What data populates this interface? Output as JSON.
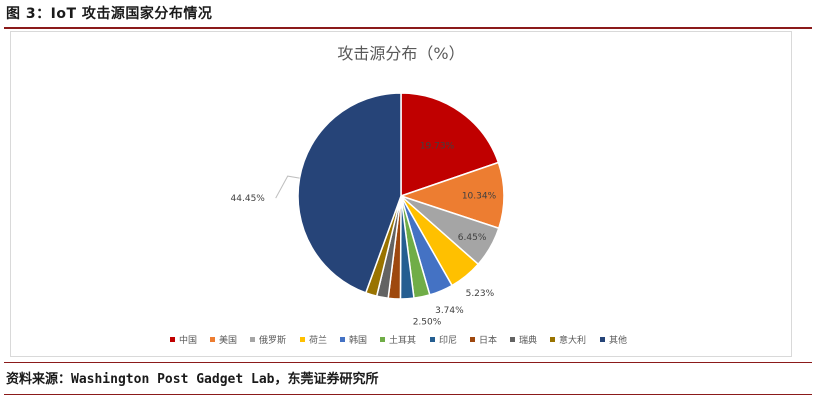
{
  "figure": {
    "title": "图 3：IoT 攻击源国家分布情况",
    "source": "资料来源：Washington Post Gadget Lab，东莞证券研究所"
  },
  "chart_data": {
    "type": "pie",
    "title": "攻击源分布（%）",
    "slices": [
      {
        "name": "中国",
        "value": 19.73,
        "label": "19.73%",
        "color": "#c00000"
      },
      {
        "name": "美国",
        "value": 10.34,
        "label": "10.34%",
        "color": "#ed7d31"
      },
      {
        "name": "俄罗斯",
        "value": 6.45,
        "label": "6.45%",
        "color": "#a5a5a5"
      },
      {
        "name": "荷兰",
        "value": 5.23,
        "label": "5.23%",
        "color": "#ffc000"
      },
      {
        "name": "韩国",
        "value": 3.74,
        "label": "3.74%",
        "color": "#4472c4"
      },
      {
        "name": "土耳其",
        "value": 2.5,
        "label": "2.50%",
        "color": "#70ad47"
      },
      {
        "name": "印尼",
        "value": 2.1,
        "label": "",
        "color": "#255e91"
      },
      {
        "name": "日本",
        "value": 1.9,
        "label": "",
        "color": "#9e480e"
      },
      {
        "name": "瑞典",
        "value": 1.8,
        "label": "",
        "color": "#636363"
      },
      {
        "name": "意大利",
        "value": 1.76,
        "label": "",
        "color": "#997300"
      },
      {
        "name": "其他",
        "value": 44.45,
        "label": "44.45%",
        "color": "#264478"
      }
    ],
    "legend_position": "bottom"
  }
}
